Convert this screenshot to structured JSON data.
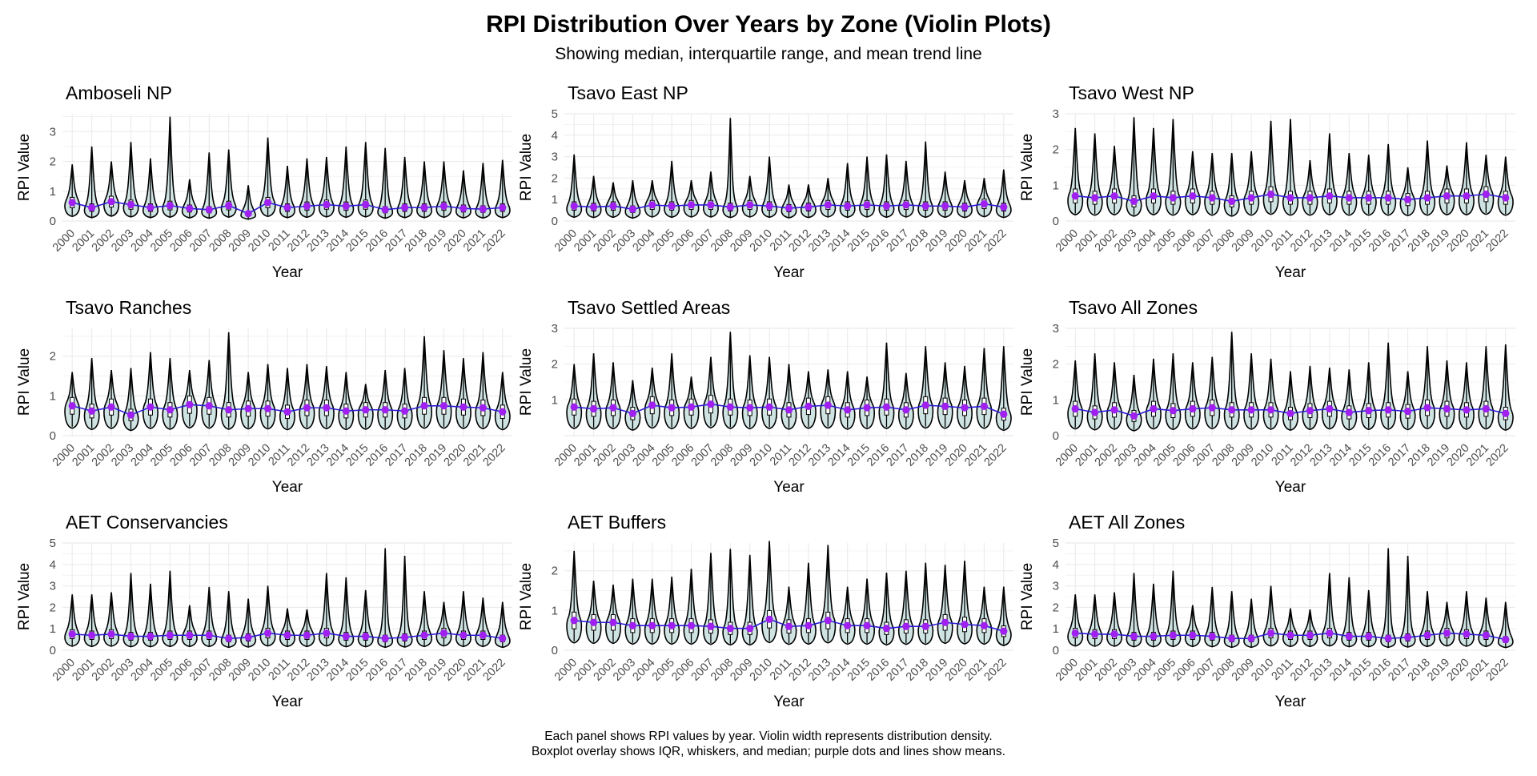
{
  "title": "RPI Distribution Over Years by Zone (Violin Plots)",
  "subtitle": "Showing median, interquartile range, and mean trend line",
  "caption": [
    "Each panel shows RPI values by year. Violin width represents distribution density.",
    "Boxplot overlay shows IQR, whiskers, and median; purple dots and lines show means."
  ],
  "colors": {
    "mean": "#a020f0",
    "trend": "#2a1ad6",
    "grid": "#ebebeb",
    "violin_fill": "#cfe3e3",
    "outline": "#000000"
  },
  "chart_data": [
    {
      "type": "violin",
      "title": "Amboseli NP",
      "xlabel": "Year",
      "ylabel": "RPI Value",
      "ylim": [
        0,
        3.6
      ],
      "yticks": [
        0,
        1,
        2,
        3
      ],
      "categories": [
        "2000",
        "2001",
        "2002",
        "2003",
        "2004",
        "2005",
        "2006",
        "2007",
        "2008",
        "2009",
        "2010",
        "2011",
        "2012",
        "2013",
        "2014",
        "2015",
        "2016",
        "2017",
        "2018",
        "2019",
        "2020",
        "2021",
        "2022"
      ],
      "means": [
        0.62,
        0.45,
        0.65,
        0.55,
        0.45,
        0.52,
        0.42,
        0.38,
        0.52,
        0.25,
        0.62,
        0.45,
        0.5,
        0.55,
        0.5,
        0.55,
        0.38,
        0.45,
        0.45,
        0.5,
        0.42,
        0.4,
        0.45
      ],
      "maxima": [
        1.9,
        2.5,
        2.0,
        2.65,
        2.1,
        3.5,
        1.4,
        2.3,
        2.4,
        1.2,
        2.8,
        1.85,
        2.1,
        2.15,
        2.5,
        2.65,
        2.45,
        2.15,
        2.0,
        2.0,
        1.7,
        1.95,
        2.05
      ]
    },
    {
      "type": "violin",
      "title": "Tsavo East NP",
      "xlabel": "Year",
      "ylabel": "RPI Value",
      "ylim": [
        0,
        5
      ],
      "yticks": [
        0,
        1,
        2,
        3,
        4,
        5
      ],
      "categories": [
        "2000",
        "2001",
        "2002",
        "2003",
        "2004",
        "2005",
        "2006",
        "2007",
        "2008",
        "2009",
        "2010",
        "2011",
        "2012",
        "2013",
        "2014",
        "2015",
        "2016",
        "2017",
        "2018",
        "2019",
        "2020",
        "2021",
        "2022"
      ],
      "means": [
        0.7,
        0.65,
        0.7,
        0.55,
        0.75,
        0.7,
        0.75,
        0.75,
        0.65,
        0.75,
        0.7,
        0.6,
        0.65,
        0.75,
        0.7,
        0.75,
        0.7,
        0.75,
        0.7,
        0.7,
        0.65,
        0.8,
        0.65
      ],
      "maxima": [
        3.1,
        2.1,
        1.8,
        1.9,
        1.9,
        2.8,
        1.9,
        2.3,
        4.8,
        2.1,
        3.0,
        1.7,
        1.7,
        2.0,
        2.7,
        3.0,
        3.1,
        2.8,
        3.7,
        2.3,
        1.9,
        2.0,
        2.4
      ]
    },
    {
      "type": "violin",
      "title": "Tsavo West NP",
      "xlabel": "Year",
      "ylabel": "RPI Value",
      "ylim": [
        0,
        3
      ],
      "yticks": [
        0,
        1,
        2,
        3
      ],
      "categories": [
        "2000",
        "2001",
        "2002",
        "2003",
        "2004",
        "2005",
        "2006",
        "2007",
        "2008",
        "2009",
        "2010",
        "2011",
        "2012",
        "2013",
        "2014",
        "2015",
        "2016",
        "2017",
        "2018",
        "2019",
        "2020",
        "2021",
        "2022"
      ],
      "means": [
        0.7,
        0.65,
        0.7,
        0.55,
        0.7,
        0.65,
        0.7,
        0.65,
        0.55,
        0.65,
        0.75,
        0.65,
        0.65,
        0.7,
        0.65,
        0.65,
        0.65,
        0.6,
        0.65,
        0.7,
        0.7,
        0.75,
        0.65
      ],
      "maxima": [
        2.6,
        2.45,
        2.1,
        2.9,
        2.6,
        2.85,
        1.95,
        1.9,
        1.9,
        1.95,
        2.8,
        2.85,
        1.7,
        2.45,
        1.9,
        1.85,
        2.15,
        1.5,
        2.25,
        1.55,
        2.2,
        1.85,
        1.8
      ]
    },
    {
      "type": "violin",
      "title": "Tsavo Ranches",
      "xlabel": "Year",
      "ylabel": "RPI Value",
      "ylim": [
        0,
        2.7
      ],
      "yticks": [
        0,
        1,
        2
      ],
      "categories": [
        "2000",
        "2001",
        "2002",
        "2003",
        "2004",
        "2005",
        "2006",
        "2007",
        "2008",
        "2009",
        "2010",
        "2011",
        "2012",
        "2013",
        "2014",
        "2015",
        "2016",
        "2017",
        "2018",
        "2019",
        "2020",
        "2021",
        "2022"
      ],
      "means": [
        0.75,
        0.62,
        0.72,
        0.52,
        0.72,
        0.65,
        0.78,
        0.75,
        0.65,
        0.68,
        0.68,
        0.6,
        0.7,
        0.7,
        0.62,
        0.65,
        0.65,
        0.62,
        0.75,
        0.75,
        0.72,
        0.7,
        0.6
      ],
      "maxima": [
        1.6,
        1.95,
        1.65,
        1.7,
        2.1,
        1.95,
        1.65,
        1.9,
        2.6,
        1.6,
        1.8,
        1.7,
        1.8,
        1.75,
        1.6,
        1.3,
        1.65,
        1.7,
        2.5,
        2.15,
        1.95,
        2.1,
        1.6
      ]
    },
    {
      "type": "violin",
      "title": "Tsavo Settled Areas",
      "xlabel": "Year",
      "ylabel": "RPI Value",
      "ylim": [
        0,
        3
      ],
      "yticks": [
        1,
        2,
        3
      ],
      "categories": [
        "2000",
        "2001",
        "2002",
        "2003",
        "2004",
        "2005",
        "2006",
        "2007",
        "2008",
        "2009",
        "2010",
        "2011",
        "2012",
        "2013",
        "2014",
        "2015",
        "2016",
        "2017",
        "2018",
        "2019",
        "2020",
        "2021",
        "2022"
      ],
      "means": [
        0.8,
        0.75,
        0.78,
        0.62,
        0.85,
        0.78,
        0.8,
        0.88,
        0.8,
        0.78,
        0.8,
        0.72,
        0.82,
        0.85,
        0.72,
        0.78,
        0.8,
        0.72,
        0.85,
        0.82,
        0.78,
        0.82,
        0.6
      ],
      "maxima": [
        2.0,
        2.3,
        2.05,
        1.55,
        1.9,
        2.3,
        1.65,
        2.2,
        2.9,
        2.25,
        2.2,
        2.0,
        1.8,
        1.85,
        1.8,
        1.65,
        2.6,
        1.75,
        2.5,
        2.05,
        1.95,
        2.45,
        2.5
      ]
    },
    {
      "type": "violin",
      "title": "Tsavo All Zones",
      "xlabel": "Year",
      "ylabel": "RPI Value",
      "ylim": [
        0,
        3
      ],
      "yticks": [
        0,
        1,
        2,
        3
      ],
      "categories": [
        "2000",
        "2001",
        "2002",
        "2003",
        "2004",
        "2005",
        "2006",
        "2007",
        "2008",
        "2009",
        "2010",
        "2011",
        "2012",
        "2013",
        "2014",
        "2015",
        "2016",
        "2017",
        "2018",
        "2019",
        "2020",
        "2021",
        "2022"
      ],
      "means": [
        0.75,
        0.65,
        0.72,
        0.55,
        0.75,
        0.7,
        0.75,
        0.78,
        0.72,
        0.72,
        0.72,
        0.62,
        0.7,
        0.75,
        0.65,
        0.7,
        0.72,
        0.68,
        0.78,
        0.75,
        0.72,
        0.75,
        0.62
      ],
      "maxima": [
        2.1,
        2.3,
        2.05,
        1.7,
        2.15,
        2.3,
        2.05,
        2.2,
        2.9,
        2.3,
        2.15,
        1.8,
        1.95,
        1.9,
        1.85,
        2.05,
        2.6,
        1.8,
        2.5,
        2.1,
        2.05,
        2.5,
        2.55
      ]
    },
    {
      "type": "violin",
      "title": "AET Conservancies",
      "xlabel": "Year",
      "ylabel": "RPI Value",
      "ylim": [
        0,
        5
      ],
      "yticks": [
        0,
        1,
        2,
        3,
        4,
        5
      ],
      "categories": [
        "2000",
        "2001",
        "2002",
        "2003",
        "2004",
        "2005",
        "2006",
        "2007",
        "2008",
        "2009",
        "2010",
        "2011",
        "2012",
        "2013",
        "2014",
        "2015",
        "2016",
        "2017",
        "2018",
        "2019",
        "2020",
        "2021",
        "2022"
      ],
      "means": [
        0.75,
        0.7,
        0.75,
        0.65,
        0.65,
        0.7,
        0.7,
        0.7,
        0.55,
        0.6,
        0.8,
        0.7,
        0.7,
        0.8,
        0.65,
        0.65,
        0.55,
        0.6,
        0.7,
        0.8,
        0.7,
        0.7,
        0.55
      ],
      "maxima": [
        2.6,
        2.6,
        2.7,
        3.6,
        3.1,
        3.7,
        2.1,
        2.95,
        2.75,
        2.4,
        3.0,
        1.95,
        1.9,
        3.6,
        3.4,
        2.8,
        4.75,
        4.4,
        2.75,
        2.25,
        2.75,
        2.45,
        2.25
      ]
    },
    {
      "type": "violin",
      "title": "AET Buffers",
      "xlabel": "Year",
      "ylabel": "RPI Value",
      "ylim": [
        0,
        2.7
      ],
      "yticks": [
        0,
        1,
        2
      ],
      "categories": [
        "2000",
        "2001",
        "2002",
        "2003",
        "2004",
        "2005",
        "2006",
        "2007",
        "2008",
        "2009",
        "2010",
        "2011",
        "2012",
        "2013",
        "2014",
        "2015",
        "2016",
        "2017",
        "2018",
        "2019",
        "2020",
        "2021",
        "2022"
      ],
      "means": [
        0.75,
        0.7,
        0.7,
        0.62,
        0.62,
        0.62,
        0.62,
        0.6,
        0.55,
        0.55,
        0.78,
        0.6,
        0.62,
        0.75,
        0.62,
        0.62,
        0.55,
        0.6,
        0.6,
        0.7,
        0.65,
        0.62,
        0.48
      ],
      "maxima": [
        2.5,
        1.75,
        1.65,
        1.8,
        1.8,
        1.85,
        2.05,
        2.45,
        2.55,
        2.4,
        2.75,
        1.6,
        2.2,
        2.65,
        1.6,
        1.8,
        1.95,
        2.0,
        2.2,
        2.15,
        2.25,
        1.6,
        1.6
      ]
    },
    {
      "type": "violin",
      "title": "AET All Zones",
      "xlabel": "Year",
      "ylabel": "RPI Value",
      "ylim": [
        0,
        5
      ],
      "yticks": [
        0,
        1,
        2,
        3,
        4,
        5
      ],
      "categories": [
        "2000",
        "2001",
        "2002",
        "2003",
        "2004",
        "2005",
        "2006",
        "2007",
        "2008",
        "2009",
        "2010",
        "2011",
        "2012",
        "2013",
        "2014",
        "2015",
        "2016",
        "2017",
        "2018",
        "2019",
        "2020",
        "2021",
        "2022"
      ],
      "means": [
        0.8,
        0.75,
        0.75,
        0.65,
        0.65,
        0.7,
        0.7,
        0.65,
        0.55,
        0.55,
        0.8,
        0.7,
        0.7,
        0.8,
        0.65,
        0.65,
        0.55,
        0.6,
        0.7,
        0.8,
        0.75,
        0.7,
        0.5
      ],
      "maxima": [
        2.6,
        2.6,
        2.7,
        3.6,
        3.1,
        3.7,
        2.1,
        2.95,
        2.75,
        2.4,
        3.0,
        1.95,
        1.9,
        3.6,
        3.4,
        2.8,
        4.75,
        4.4,
        2.75,
        2.25,
        2.75,
        2.45,
        2.25
      ]
    }
  ]
}
